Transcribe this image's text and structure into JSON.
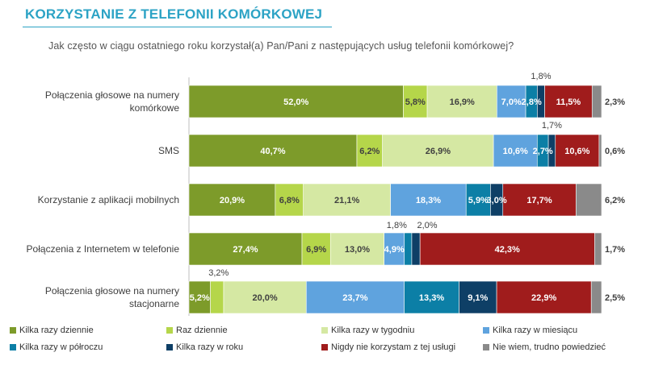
{
  "header": {
    "title": "KORZYSTANIE Z TELEFONII KOMÓRKOWEJ",
    "subtitle": "Jak często w ciągu ostatniego roku korzystał(a) Pan/Pani z następujących usług telefonii komórkowej?"
  },
  "chart_data": {
    "type": "bar",
    "orientation": "horizontal",
    "stacked": "100%",
    "title": "",
    "xlabel": "",
    "ylabel": "",
    "xlim": [
      0,
      100
    ],
    "legend_position": "bottom",
    "categories": [
      "Połączenia głosowe na numery komórkowe",
      "SMS",
      "Korzystanie z aplikacji mobilnych",
      "Połączenia z Internetem w telefonie",
      "Połączenia głosowe na numery stacjonarne"
    ],
    "category_lines": [
      [
        "Połączenia głosowe na numery",
        "komórkowe"
      ],
      [
        "SMS"
      ],
      [
        "Korzystanie z aplikacji mobilnych"
      ],
      [
        "Połączenia z Internetem w telefonie"
      ],
      [
        "Połączenia głosowe na numery",
        "stacjonarne"
      ]
    ],
    "series": [
      {
        "name": "Kilka razy dziennie",
        "color": "#7d9b2a",
        "values": [
          52.0,
          40.7,
          20.9,
          27.4,
          5.2
        ]
      },
      {
        "name": "Raz dziennie",
        "color": "#b5d64a",
        "values": [
          5.8,
          6.2,
          6.8,
          6.9,
          3.2
        ]
      },
      {
        "name": "Kilka razy w tygodniu",
        "color": "#d5e8a3",
        "values": [
          16.9,
          26.9,
          21.1,
          13.0,
          20.0
        ]
      },
      {
        "name": "Kilka razy w miesiącu",
        "color": "#5fa3de",
        "values": [
          7.0,
          10.6,
          18.3,
          4.9,
          23.7
        ]
      },
      {
        "name": "Kilka razy w półroczu",
        "color": "#0c7fa6",
        "values": [
          2.8,
          2.7,
          5.9,
          1.8,
          13.3
        ]
      },
      {
        "name": "Kilka razy w roku",
        "color": "#0e3f66",
        "values": [
          1.8,
          1.7,
          3.0,
          2.0,
          9.1
        ]
      },
      {
        "name": "Nigdy nie korzystam z tej usługi",
        "color": "#a01c1c",
        "values": [
          11.5,
          10.6,
          17.7,
          42.3,
          22.9
        ]
      },
      {
        "name": "Nie wiem, trudno powiedzieć",
        "color": "#8a8a8a",
        "values": [
          2.3,
          0.6,
          6.2,
          1.7,
          2.5
        ]
      }
    ],
    "data_labels": [
      [
        "52,0%",
        "5,8%",
        "16,9%",
        "7,0%",
        "2,8%",
        "1,8%",
        "11,5%",
        "2,3%"
      ],
      [
        "40,7%",
        "6,2%",
        "26,9%",
        "10,6%",
        "2,7%",
        "1,7%",
        "10,6%",
        "0,6%"
      ],
      [
        "20,9%",
        "6,8%",
        "21,1%",
        "18,3%",
        "5,9%",
        "3,0%",
        "17,7%",
        "6,2%"
      ],
      [
        "27,4%",
        "6,9%",
        "13,0%",
        "4,9%",
        "1,8%",
        "2,0%",
        "42,3%",
        "1,7%"
      ],
      [
        "5,2%",
        "3,2%",
        "20,0%",
        "23,7%",
        "13,3%",
        "9,1%",
        "22,9%",
        "2,5%"
      ]
    ]
  }
}
